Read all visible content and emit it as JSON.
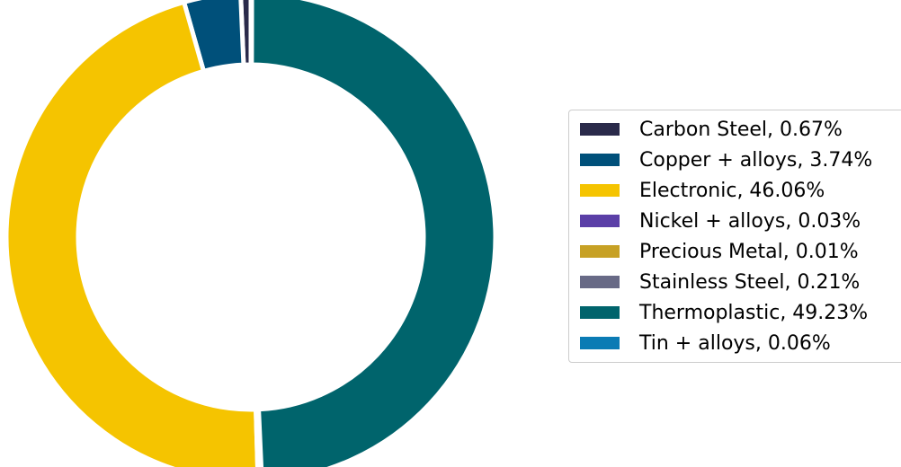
{
  "chart_data": {
    "type": "pie",
    "subtype": "donut",
    "legend_position": "right",
    "slices": [
      {
        "label": "Carbon Steel",
        "value": 0.67,
        "color": "#2a2a4a"
      },
      {
        "label": "Copper + alloys",
        "value": 3.74,
        "color": "#00507a"
      },
      {
        "label": "Electronic",
        "value": 46.06,
        "color": "#f5c400"
      },
      {
        "label": "Nickel + alloys",
        "value": 0.03,
        "color": "#5b3fa7"
      },
      {
        "label": "Precious Metal",
        "value": 0.01,
        "color": "#c7a125"
      },
      {
        "label": "Stainless Steel",
        "value": 0.21,
        "color": "#686a86"
      },
      {
        "label": "Thermoplastic",
        "value": 49.23,
        "color": "#00646c"
      },
      {
        "label": "Tin + alloys",
        "value": 0.06,
        "color": "#0a7bb4"
      }
    ],
    "legend_labels": [
      "Carbon Steel, 0.67%",
      "Copper + alloys, 3.74%",
      "Electronic, 46.06%",
      "Nickel + alloys, 0.03%",
      "Precious Metal, 0.01%",
      "Stainless Steel, 0.21%",
      "Thermoplastic, 49.23%",
      "Tin + alloys, 0.06%"
    ]
  }
}
